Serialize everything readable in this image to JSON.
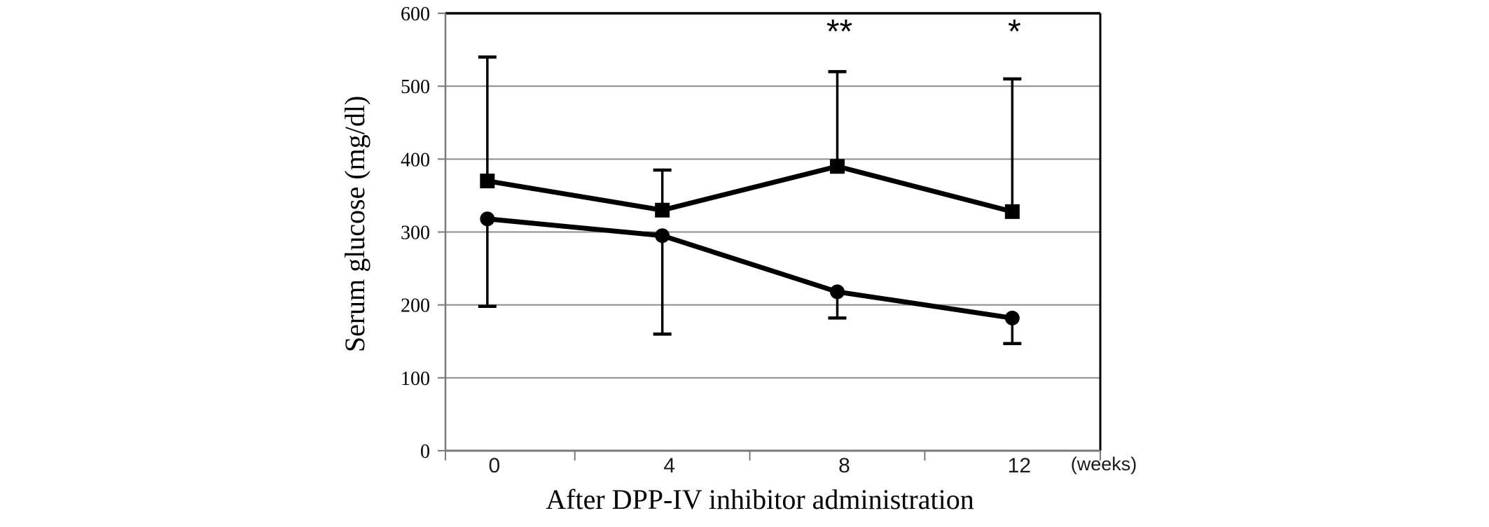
{
  "chart_data": {
    "type": "line",
    "title": "",
    "xlabel": "After DPP-IV inhibitor administration",
    "ylabel": "Serum glucose (mg/dl)",
    "x_unit": "(weeks)",
    "x": [
      0,
      4,
      8,
      12
    ],
    "xtick_labels": [
      "0",
      "4",
      "8",
      "12"
    ],
    "yticks": [
      0,
      100,
      200,
      300,
      400,
      500,
      600
    ],
    "ytick_labels": [
      "0",
      "100",
      "200",
      "300",
      "400",
      "500",
      "600"
    ],
    "ylim": [
      0,
      600
    ],
    "grid": "horizontal",
    "legend": "none",
    "series": [
      {
        "name": "filled-square-series",
        "marker": "square",
        "color": "#000000",
        "values": [
          370,
          330,
          390,
          328
        ],
        "error_top": [
          540,
          385,
          520,
          510
        ]
      },
      {
        "name": "filled-circle-series",
        "marker": "circle",
        "color": "#000000",
        "values": [
          318,
          295,
          218,
          182
        ],
        "error_bottom": [
          198,
          160,
          182,
          147
        ]
      }
    ],
    "annotations": [
      {
        "x": 8,
        "text": "**"
      },
      {
        "x": 12,
        "text": "*"
      }
    ],
    "colors": {
      "grid": "#8c8c8c",
      "axis": "#7a7a7a",
      "border": "#000000",
      "text": "#000000",
      "background": "#ffffff"
    }
  }
}
